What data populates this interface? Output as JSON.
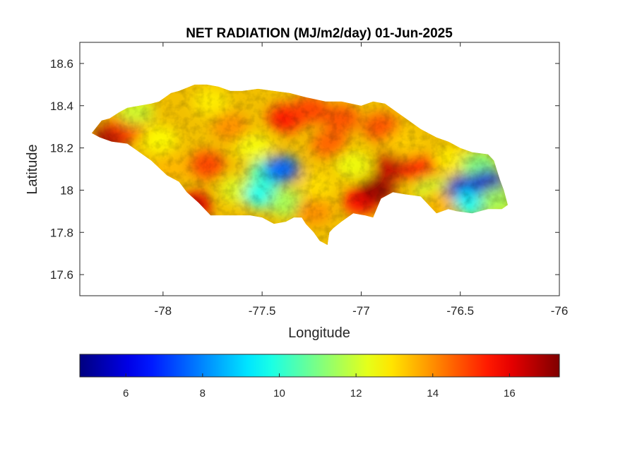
{
  "chart_data": {
    "type": "heatmap",
    "title": "NET RADIATION (MJ/m2/day) 01-Jun-2025",
    "xlabel": "Longitude",
    "ylabel": "Latitude",
    "xlim": [
      -78.42,
      -76
    ],
    "ylim": [
      17.5,
      18.7
    ],
    "x_ticks": [
      -78,
      -77.5,
      -77,
      -76.5,
      -76
    ],
    "x_tick_labels": [
      "-78",
      "-77.5",
      "-77",
      "-76.5",
      "-76"
    ],
    "y_ticks": [
      17.6,
      17.8,
      18,
      18.2,
      18.4,
      18.6
    ],
    "y_tick_labels": [
      "17.6",
      "17.8",
      "18",
      "18.2",
      "18.4",
      "18.6"
    ],
    "colormap": "jet",
    "colorbar": {
      "orientation": "horizontal",
      "location": "bottom",
      "range": [
        4.8,
        17.3
      ],
      "ticks": [
        6,
        8,
        10,
        12,
        14,
        16
      ],
      "tick_labels": [
        "6",
        "8",
        "10",
        "12",
        "14",
        "16"
      ]
    },
    "region_outline": [
      [
        -78.36,
        18.27
      ],
      [
        -78.31,
        18.33
      ],
      [
        -78.27,
        18.34
      ],
      [
        -78.22,
        18.37
      ],
      [
        -78.18,
        18.39
      ],
      [
        -78.12,
        18.4
      ],
      [
        -78.06,
        18.41
      ],
      [
        -78.02,
        18.42
      ],
      [
        -77.96,
        18.46
      ],
      [
        -77.92,
        18.47
      ],
      [
        -77.84,
        18.5
      ],
      [
        -77.78,
        18.5
      ],
      [
        -77.72,
        18.49
      ],
      [
        -77.66,
        18.47
      ],
      [
        -77.6,
        18.47
      ],
      [
        -77.52,
        18.48
      ],
      [
        -77.44,
        18.47
      ],
      [
        -77.36,
        18.46
      ],
      [
        -77.28,
        18.44
      ],
      [
        -77.18,
        18.42
      ],
      [
        -77.1,
        18.42
      ],
      [
        -77.0,
        18.4
      ],
      [
        -76.94,
        18.42
      ],
      [
        -76.88,
        18.41
      ],
      [
        -76.82,
        18.37
      ],
      [
        -76.76,
        18.33
      ],
      [
        -76.7,
        18.29
      ],
      [
        -76.62,
        18.25
      ],
      [
        -76.56,
        18.23
      ],
      [
        -76.5,
        18.2
      ],
      [
        -76.44,
        18.18
      ],
      [
        -76.36,
        18.17
      ],
      [
        -76.33,
        18.14
      ],
      [
        -76.3,
        18.05
      ],
      [
        -76.28,
        18.0
      ],
      [
        -76.26,
        17.93
      ],
      [
        -76.29,
        17.91
      ],
      [
        -76.36,
        17.91
      ],
      [
        -76.44,
        17.89
      ],
      [
        -76.52,
        17.9
      ],
      [
        -76.56,
        17.91
      ],
      [
        -76.62,
        17.89
      ],
      [
        -76.66,
        17.93
      ],
      [
        -76.7,
        17.97
      ],
      [
        -76.78,
        17.98
      ],
      [
        -76.84,
        17.99
      ],
      [
        -76.9,
        17.96
      ],
      [
        -76.94,
        17.87
      ],
      [
        -76.98,
        17.88
      ],
      [
        -77.04,
        17.89
      ],
      [
        -77.1,
        17.85
      ],
      [
        -77.14,
        17.82
      ],
      [
        -77.16,
        17.8
      ],
      [
        -77.17,
        17.74
      ],
      [
        -77.21,
        17.76
      ],
      [
        -77.24,
        17.8
      ],
      [
        -77.28,
        17.84
      ],
      [
        -77.3,
        17.87
      ],
      [
        -77.34,
        17.87
      ],
      [
        -77.38,
        17.85
      ],
      [
        -77.44,
        17.84
      ],
      [
        -77.5,
        17.87
      ],
      [
        -77.56,
        17.88
      ],
      [
        -77.64,
        17.88
      ],
      [
        -77.72,
        17.88
      ],
      [
        -77.76,
        17.88
      ],
      [
        -77.82,
        17.94
      ],
      [
        -77.88,
        17.99
      ],
      [
        -77.92,
        18.04
      ],
      [
        -77.98,
        18.07
      ],
      [
        -78.06,
        18.14
      ],
      [
        -78.12,
        18.18
      ],
      [
        -78.18,
        18.22
      ],
      [
        -78.26,
        18.23
      ],
      [
        -78.32,
        18.25
      ]
    ],
    "value_regions": [
      {
        "lon": -78.26,
        "lat": 18.25,
        "value": 17.0
      },
      {
        "lon": -78.18,
        "lat": 18.3,
        "value": 15.2
      },
      {
        "lon": -78.14,
        "lat": 18.37,
        "value": 12.0
      },
      {
        "lon": -78.02,
        "lat": 18.24,
        "value": 12.6
      },
      {
        "lon": -77.95,
        "lat": 18.1,
        "value": 13.5
      },
      {
        "lon": -77.84,
        "lat": 17.93,
        "value": 16.2
      },
      {
        "lon": -77.78,
        "lat": 18.12,
        "value": 15.0
      },
      {
        "lon": -77.76,
        "lat": 18.42,
        "value": 12.8
      },
      {
        "lon": -77.66,
        "lat": 18.3,
        "value": 14.0
      },
      {
        "lon": -77.62,
        "lat": 18.0,
        "value": 12.2
      },
      {
        "lon": -77.54,
        "lat": 18.2,
        "value": 12.5
      },
      {
        "lon": -77.5,
        "lat": 17.98,
        "value": 9.5
      },
      {
        "lon": -77.48,
        "lat": 18.08,
        "value": 10.2
      },
      {
        "lon": -77.4,
        "lat": 18.1,
        "value": 7.5
      },
      {
        "lon": -77.38,
        "lat": 17.94,
        "value": 11.5
      },
      {
        "lon": -77.38,
        "lat": 18.34,
        "value": 15.6
      },
      {
        "lon": -77.26,
        "lat": 18.38,
        "value": 15.0
      },
      {
        "lon": -77.24,
        "lat": 17.9,
        "value": 14.0
      },
      {
        "lon": -77.22,
        "lat": 18.02,
        "value": 13.0
      },
      {
        "lon": -77.16,
        "lat": 18.22,
        "value": 14.6
      },
      {
        "lon": -77.1,
        "lat": 18.34,
        "value": 14.8
      },
      {
        "lon": -77.04,
        "lat": 18.12,
        "value": 12.4
      },
      {
        "lon": -77.0,
        "lat": 17.95,
        "value": 15.8
      },
      {
        "lon": -76.92,
        "lat": 18.0,
        "value": 17.1
      },
      {
        "lon": -76.9,
        "lat": 18.3,
        "value": 14.8
      },
      {
        "lon": -76.84,
        "lat": 18.12,
        "value": 16.5
      },
      {
        "lon": -76.78,
        "lat": 18.22,
        "value": 13.2
      },
      {
        "lon": -76.7,
        "lat": 18.1,
        "value": 15.4
      },
      {
        "lon": -76.64,
        "lat": 18.0,
        "value": 12.0
      },
      {
        "lon": -76.6,
        "lat": 17.94,
        "value": 13.5
      },
      {
        "lon": -76.54,
        "lat": 18.14,
        "value": 12.8
      },
      {
        "lon": -76.48,
        "lat": 18.01,
        "value": 6.0
      },
      {
        "lon": -76.44,
        "lat": 17.94,
        "value": 9.5
      },
      {
        "lon": -76.4,
        "lat": 18.12,
        "value": 11.0
      },
      {
        "lon": -76.36,
        "lat": 18.03,
        "value": 5.8
      },
      {
        "lon": -76.31,
        "lat": 17.95,
        "value": 11.5
      }
    ]
  }
}
